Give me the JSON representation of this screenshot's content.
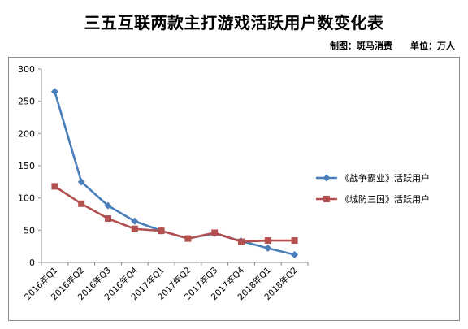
{
  "header": {
    "title": "三五互联两款主打游戏活跃用户数变化表",
    "credit": "制图：斑马消费",
    "unit": "单位：万人"
  },
  "chart_data": {
    "type": "line",
    "title": "三五互联两款主打游戏活跃用户数变化表",
    "xlabel": "",
    "ylabel": "",
    "categories": [
      "2016年Q1",
      "2016年Q2",
      "2016年Q3",
      "2016年Q4",
      "2017年Q1",
      "2017年Q2",
      "2017年Q3",
      "2017年Q4",
      "2018年Q1",
      "2018年Q2"
    ],
    "ylim": [
      0,
      300
    ],
    "yticks": [
      0,
      50,
      100,
      150,
      200,
      250,
      300
    ],
    "grid": false,
    "legend_position": "right",
    "series": [
      {
        "name": "《战争霸业》活跃用户",
        "color": "#4a7ebb",
        "marker": "diamond",
        "values": [
          265,
          125,
          88,
          64,
          49,
          37,
          45,
          33,
          22,
          12
        ]
      },
      {
        "name": "《城防三国》活跃用户",
        "color": "#b2504f",
        "marker": "square",
        "values": [
          118,
          91,
          68,
          52,
          49,
          37,
          46,
          32,
          34,
          34
        ]
      }
    ]
  }
}
